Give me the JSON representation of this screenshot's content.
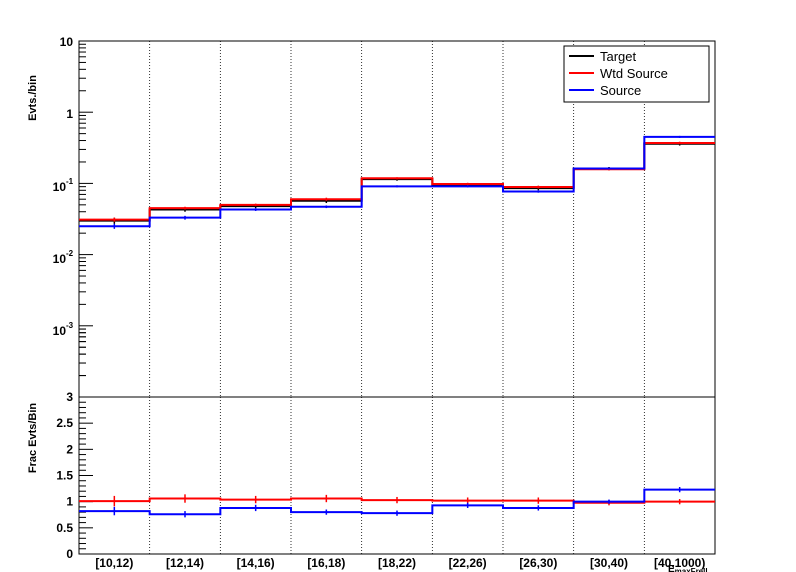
{
  "chart_data": [
    {
      "type": "histogram-step",
      "scale": "log",
      "ylabel": "Evts./bin",
      "ylim": [
        0.0001,
        10
      ],
      "y_tick_labels": {
        "e1": "10",
        "e0": "1",
        "em1": "10",
        "em1_exp": "-1",
        "em2": "10",
        "em2_exp": "-2",
        "em3": "10",
        "em3_exp": "-3"
      },
      "categories": [
        "[10,12)",
        "[12,14)",
        "[14,16)",
        "[16,18)",
        "[18,22)",
        "[22,26)",
        "[26,30)",
        "[30,40)",
        "[40,1000)"
      ],
      "series": [
        {
          "name": "Target",
          "color": "#000000",
          "values": [
            0.03,
            0.043,
            0.048,
            0.057,
            0.115,
            0.095,
            0.086,
            0.162,
            0.36
          ],
          "errors": [
            0.003,
            0.003,
            0.003,
            0.004,
            0.006,
            0.006,
            0.006,
            0.008,
            0.02
          ]
        },
        {
          "name": "Wtd Source",
          "color": "#ff0000",
          "values": [
            0.031,
            0.045,
            0.05,
            0.06,
            0.118,
            0.098,
            0.089,
            0.158,
            0.37
          ],
          "errors": [
            0.002,
            0.002,
            0.002,
            0.003,
            0.004,
            0.004,
            0.004,
            0.006,
            0.015
          ]
        },
        {
          "name": "Source",
          "color": "#0000ff",
          "values": [
            0.025,
            0.033,
            0.043,
            0.047,
            0.091,
            0.091,
            0.077,
            0.162,
            0.45
          ],
          "errors": [
            0.002,
            0.002,
            0.002,
            0.002,
            0.003,
            0.003,
            0.003,
            0.005,
            0.015
          ]
        }
      ],
      "legend_position": "top-right",
      "grid": "vertical-dotted"
    },
    {
      "type": "histogram-step",
      "scale": "linear",
      "ylabel": "Frac Evts/Bin",
      "xlabel": "E",
      "xlabel_sub": "maxFrell",
      "ylim": [
        0,
        3
      ],
      "y_ticks": [
        "0",
        "0.5",
        "1",
        "1.5",
        "2",
        "2.5",
        "3"
      ],
      "categories": [
        "[10,12)",
        "[12,14)",
        "[14,16)",
        "[16,18)",
        "[18,22)",
        "[22,26)",
        "[26,30)",
        "[30,40)",
        "[40,1000)"
      ],
      "series": [
        {
          "name": "Wtd Source",
          "color": "#ff0000",
          "values": [
            1.01,
            1.06,
            1.04,
            1.06,
            1.03,
            1.02,
            1.02,
            0.98,
            1.0
          ],
          "errors": [
            0.1,
            0.08,
            0.07,
            0.07,
            0.06,
            0.06,
            0.06,
            0.05,
            0.05
          ]
        },
        {
          "name": "Source",
          "color": "#0000ff",
          "values": [
            0.82,
            0.76,
            0.88,
            0.8,
            0.78,
            0.93,
            0.88,
            1.0,
            1.23
          ],
          "errors": [
            0.08,
            0.06,
            0.06,
            0.05,
            0.05,
            0.05,
            0.05,
            0.04,
            0.05
          ]
        }
      ],
      "grid": "vertical-dotted"
    }
  ]
}
